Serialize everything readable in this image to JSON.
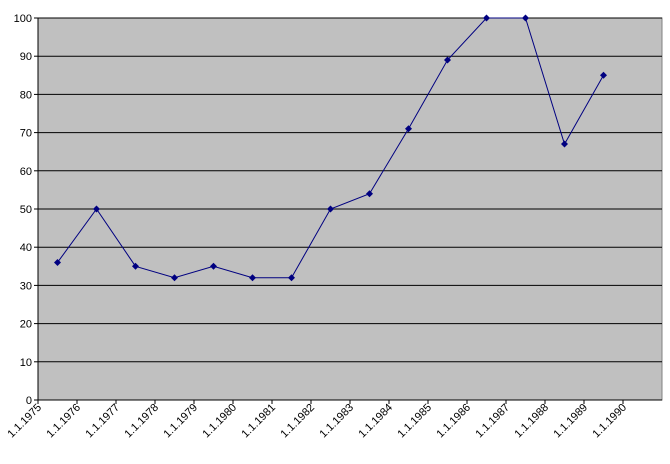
{
  "chart_data": {
    "type": "line",
    "categories": [
      "1.1.1975",
      "1.1.1976",
      "1.1.1977",
      "1.1.1978",
      "1.1.1979",
      "1.1.1980",
      "1.1.1981",
      "1.1.1982",
      "1.1.1983",
      "1.1.1984",
      "1.1.1985",
      "1.1.1986",
      "1.1.1987",
      "1.1.1988",
      "1.1.1989",
      "1.1.1990"
    ],
    "series": [
      {
        "color": "#000080",
        "values": [
          36,
          50,
          35,
          32,
          35,
          32,
          32,
          50,
          54,
          71,
          89,
          100,
          100,
          67,
          85,
          null
        ]
      }
    ],
    "ylim": [
      0,
      100
    ],
    "yticks": [
      0,
      10,
      20,
      30,
      40,
      50,
      60,
      70,
      80,
      90,
      100
    ],
    "grid": true
  }
}
